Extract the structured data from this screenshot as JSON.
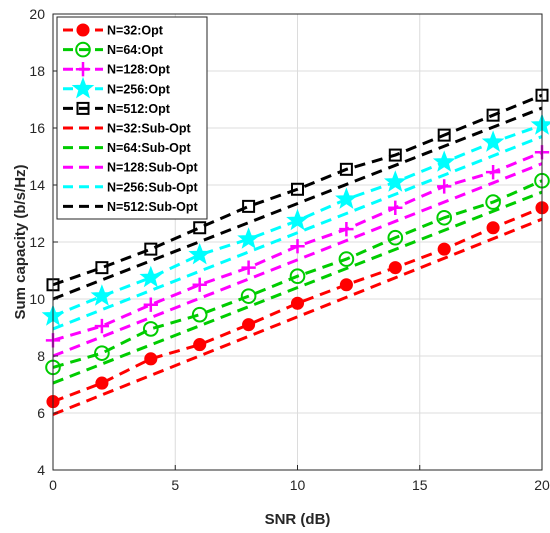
{
  "chart_data": {
    "type": "line",
    "xlabel": "SNR (dB)",
    "ylabel": "Sum capacity (b/s/Hz)",
    "xlim": [
      0,
      20
    ],
    "ylim": [
      4,
      20
    ],
    "xticks": [
      0,
      5,
      10,
      15,
      20
    ],
    "yticks": [
      4,
      6,
      8,
      10,
      12,
      14,
      16,
      18,
      20
    ],
    "grid": true,
    "legend_position": "top-left",
    "series": [
      {
        "name": "N=32:Opt",
        "color": "#ff0000",
        "style": "dashed",
        "marker": "filled-circle",
        "x": [
          0,
          2,
          4,
          6,
          8,
          10,
          12,
          14,
          16,
          18,
          20
        ],
        "y": [
          6.4,
          7.05,
          7.9,
          8.4,
          9.1,
          9.85,
          10.5,
          11.1,
          11.75,
          12.5,
          13.2
        ]
      },
      {
        "name": "N=64:Opt",
        "color": "#00cc00",
        "style": "dashed",
        "marker": "open-circle",
        "x": [
          0,
          2,
          4,
          6,
          8,
          10,
          12,
          14,
          16,
          18,
          20
        ],
        "y": [
          7.6,
          8.1,
          8.95,
          9.45,
          10.1,
          10.8,
          11.4,
          12.15,
          12.85,
          13.4,
          14.15
        ]
      },
      {
        "name": "N=128:Opt",
        "color": "#ff00ff",
        "style": "dashed",
        "marker": "plus",
        "x": [
          0,
          2,
          4,
          6,
          8,
          10,
          12,
          14,
          16,
          18,
          20
        ],
        "y": [
          8.55,
          9.05,
          9.8,
          10.5,
          11.1,
          11.85,
          12.45,
          13.2,
          13.95,
          14.45,
          15.15
        ]
      },
      {
        "name": "N=256:Opt",
        "color": "#00ffff",
        "style": "dashed",
        "marker": "star",
        "x": [
          0,
          2,
          4,
          6,
          8,
          10,
          12,
          14,
          16,
          18,
          20
        ],
        "y": [
          9.4,
          10.1,
          10.75,
          11.55,
          12.1,
          12.75,
          13.5,
          14.1,
          14.8,
          15.5,
          16.1
        ]
      },
      {
        "name": "N=512:Opt",
        "color": "#000000",
        "style": "dashed",
        "marker": "open-square",
        "x": [
          0,
          2,
          4,
          6,
          8,
          10,
          12,
          14,
          16,
          18,
          20
        ],
        "y": [
          10.5,
          11.1,
          11.75,
          12.5,
          13.25,
          13.85,
          14.55,
          15.05,
          15.75,
          16.45,
          17.15
        ]
      },
      {
        "name": "N=32:Sub-Opt",
        "color": "#ff0000",
        "style": "dashed",
        "marker": "none",
        "x": [
          0,
          20
        ],
        "y": [
          5.95,
          12.8
        ]
      },
      {
        "name": "N=64:Sub-Opt",
        "color": "#00cc00",
        "style": "dashed",
        "marker": "none",
        "x": [
          0,
          20
        ],
        "y": [
          7.05,
          13.75
        ]
      },
      {
        "name": "N=128:Sub-Opt",
        "color": "#ff00ff",
        "style": "dashed",
        "marker": "none",
        "x": [
          0,
          20
        ],
        "y": [
          8.0,
          14.75
        ]
      },
      {
        "name": "N=256:Sub-Opt",
        "color": "#00ffff",
        "style": "dashed",
        "marker": "none",
        "x": [
          0,
          20
        ],
        "y": [
          8.95,
          15.7
        ]
      },
      {
        "name": "N=512:Sub-Opt",
        "color": "#000000",
        "style": "dashed",
        "marker": "none",
        "x": [
          0,
          20
        ],
        "y": [
          10.0,
          16.7
        ]
      }
    ]
  }
}
